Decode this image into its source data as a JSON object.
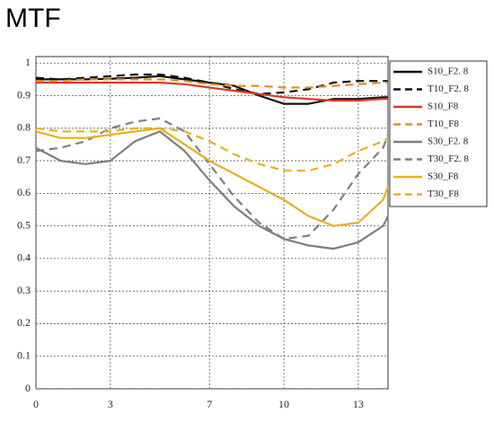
{
  "chart_data": {
    "type": "line",
    "title": "MTF",
    "x": [
      0,
      1,
      2,
      3,
      4,
      5,
      6,
      7,
      8,
      9,
      10,
      11,
      12,
      13,
      14,
      14.2
    ],
    "xlim": [
      0,
      14.2
    ],
    "xticks": [
      0,
      3,
      7,
      10,
      13
    ],
    "ylim": [
      0,
      1.02
    ],
    "yticks": [
      0,
      0.1,
      0.2,
      0.3,
      0.4,
      0.5,
      0.6,
      0.7,
      0.8,
      0.9,
      1
    ],
    "grid": true,
    "legend": "right",
    "series": [
      {
        "name": "S10_F2. 8",
        "color": "#111111",
        "dashed": false,
        "values": [
          0.95,
          0.95,
          0.95,
          0.952,
          0.955,
          0.96,
          0.95,
          0.94,
          0.93,
          0.9,
          0.875,
          0.875,
          0.89,
          0.89,
          0.895,
          0.895
        ]
      },
      {
        "name": "T10_F2. 8",
        "color": "#111111",
        "dashed": true,
        "values": [
          0.955,
          0.95,
          0.955,
          0.96,
          0.965,
          0.965,
          0.955,
          0.94,
          0.92,
          0.905,
          0.91,
          0.92,
          0.94,
          0.945,
          0.945,
          0.945
        ]
      },
      {
        "name": "S10_F8",
        "color": "#d83a24",
        "dashed": false,
        "values": [
          0.94,
          0.94,
          0.94,
          0.94,
          0.94,
          0.94,
          0.935,
          0.925,
          0.915,
          0.905,
          0.895,
          0.89,
          0.885,
          0.885,
          0.89,
          0.89
        ]
      },
      {
        "name": "T10_F8",
        "color": "#e0901e",
        "dashed": true,
        "values": [
          0.945,
          0.945,
          0.95,
          0.95,
          0.95,
          0.95,
          0.945,
          0.935,
          0.93,
          0.93,
          0.925,
          0.925,
          0.93,
          0.935,
          0.94,
          0.94
        ]
      },
      {
        "name": "S30_F2. 8",
        "color": "#7f7f7f",
        "dashed": false,
        "values": [
          0.74,
          0.7,
          0.69,
          0.7,
          0.76,
          0.79,
          0.73,
          0.64,
          0.56,
          0.5,
          0.46,
          0.44,
          0.43,
          0.45,
          0.5,
          0.53
        ]
      },
      {
        "name": "T30_F2. 8",
        "color": "#7f7f7f",
        "dashed": true,
        "values": [
          0.73,
          0.74,
          0.76,
          0.8,
          0.82,
          0.83,
          0.79,
          0.69,
          0.59,
          0.51,
          0.46,
          0.47,
          0.55,
          0.66,
          0.74,
          0.78
        ]
      },
      {
        "name": "S30_F8",
        "color": "#e8b020",
        "dashed": false,
        "values": [
          0.79,
          0.77,
          0.77,
          0.78,
          0.79,
          0.8,
          0.75,
          0.7,
          0.66,
          0.62,
          0.58,
          0.53,
          0.5,
          0.51,
          0.58,
          0.62
        ]
      },
      {
        "name": "T30_F8",
        "color": "#e8b020",
        "dashed": true,
        "values": [
          0.8,
          0.79,
          0.79,
          0.79,
          0.8,
          0.8,
          0.79,
          0.76,
          0.72,
          0.69,
          0.67,
          0.67,
          0.69,
          0.73,
          0.76,
          0.77
        ]
      }
    ]
  }
}
